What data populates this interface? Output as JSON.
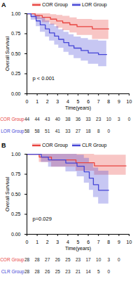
{
  "chart_data": [
    {
      "type": "line",
      "panel_label": "A",
      "x_label": "Time(years)",
      "y_label": "Overall Survival",
      "annotation": "p < 0.001",
      "xlim": [
        0,
        10
      ],
      "xticks": [
        0,
        1,
        2,
        3,
        4,
        5,
        6,
        7,
        8,
        9,
        10
      ],
      "ylim": [
        0,
        1
      ],
      "yticks": [
        {
          "value": 0,
          "label": "0.00"
        },
        {
          "value": 0.25,
          "label": "0.25"
        },
        {
          "value": 0.5,
          "label": "0.50"
        },
        {
          "value": 0.75,
          "label": "0.75"
        },
        {
          "value": 1,
          "label": "1.00"
        }
      ],
      "legend": "top",
      "series": [
        {
          "name": "COR Group",
          "color": "#e8433f",
          "x": [
            0,
            0.8,
            1.5,
            2.3,
            2.9,
            3.5,
            4.2,
            4.9,
            6.4,
            8.0
          ],
          "values": [
            1,
            0.977,
            0.955,
            0.932,
            0.909,
            0.886,
            0.862,
            0.838,
            0.81,
            0.81
          ],
          "lower": [
            1,
            0.93,
            0.89,
            0.86,
            0.82,
            0.79,
            0.76,
            0.73,
            0.68,
            0.68
          ],
          "upper": [
            1,
            1,
            1,
            0.99,
            0.98,
            0.97,
            0.95,
            0.93,
            0.92,
            0.92
          ]
        },
        {
          "name": "LOR Group",
          "color": "#4545d6",
          "x": [
            0,
            0.4,
            0.9,
            1.3,
            1.8,
            2.2,
            2.7,
            3.1,
            3.6,
            4.1,
            4.6,
            5.3,
            6.0,
            7.0,
            7.8
          ],
          "values": [
            1,
            0.965,
            0.91,
            0.86,
            0.81,
            0.76,
            0.72,
            0.68,
            0.64,
            0.6,
            0.57,
            0.54,
            0.51,
            0.49,
            0.49
          ],
          "lower": [
            1,
            0.92,
            0.84,
            0.77,
            0.71,
            0.66,
            0.61,
            0.57,
            0.52,
            0.48,
            0.44,
            0.41,
            0.37,
            0.34,
            0.34
          ],
          "upper": [
            1,
            1,
            0.98,
            0.95,
            0.91,
            0.87,
            0.84,
            0.8,
            0.77,
            0.74,
            0.71,
            0.69,
            0.67,
            0.66,
            0.66
          ]
        }
      ],
      "risk_table": {
        "times": [
          0,
          1,
          2,
          3,
          4,
          5,
          6,
          7,
          8,
          9,
          10
        ],
        "rows": [
          {
            "name": "COR Group",
            "color": "#e8433f",
            "counts": [
              44,
              44,
              43,
              40,
              38,
              36,
              33,
              23,
              10,
              3,
              0
            ]
          },
          {
            "name": "LOR Group",
            "color": "#4545d6",
            "counts": [
              58,
              58,
              51,
              41,
              33,
              27,
              18,
              8,
              0,
              null,
              null
            ]
          }
        ]
      }
    },
    {
      "type": "line",
      "panel_label": "B",
      "x_label": "Time(years)",
      "y_label": "Overall Survival",
      "annotation": "p=0.029",
      "xlim": [
        0,
        10
      ],
      "xticks": [
        0,
        1,
        2,
        3,
        4,
        5,
        6,
        7,
        8,
        9,
        10
      ],
      "ylim": [
        0,
        1
      ],
      "yticks": [
        {
          "value": 0,
          "label": "0.00"
        },
        {
          "value": 0.25,
          "label": "0.25"
        },
        {
          "value": 0.5,
          "label": "0.50"
        },
        {
          "value": 0.75,
          "label": "0.75"
        },
        {
          "value": 1,
          "label": "1.00"
        }
      ],
      "legend": "top",
      "series": [
        {
          "name": "COR Group",
          "color": "#e8433f",
          "x": [
            0,
            1.2,
            2.4,
            4.8,
            6.6,
            9.7
          ],
          "values": [
            1,
            0.964,
            0.929,
            0.893,
            0.855,
            0.855
          ],
          "lower": [
            1,
            0.9,
            0.84,
            0.79,
            0.74,
            0.74
          ],
          "upper": [
            1,
            1,
            1,
            1,
            0.99,
            0.99
          ]
        },
        {
          "name": "CLR Group",
          "color": "#4545d6",
          "x": [
            0,
            1.4,
            2.1,
            3.8,
            4.9,
            5.6,
            6.1,
            6.5,
            7.0,
            8.0
          ],
          "values": [
            1,
            0.964,
            0.929,
            0.89,
            0.85,
            0.78,
            0.7,
            0.62,
            0.55,
            0.55
          ],
          "lower": [
            1,
            0.9,
            0.84,
            0.78,
            0.72,
            0.64,
            0.55,
            0.46,
            0.38,
            0.38
          ],
          "upper": [
            1,
            1,
            1,
            1,
            0.99,
            0.95,
            0.89,
            0.83,
            0.79,
            0.79
          ]
        }
      ],
      "risk_table": {
        "times": [
          0,
          1,
          2,
          3,
          4,
          5,
          6,
          7,
          8,
          9,
          10
        ],
        "rows": [
          {
            "name": "COR Group",
            "color": "#e8433f",
            "counts": [
              28,
              28,
              27,
              26,
              25,
              23,
              17,
              10,
              3,
              0,
              null
            ]
          },
          {
            "name": "CLR Group",
            "color": "#4545d6",
            "counts": [
              28,
              28,
              26,
              25,
              23,
              21,
              14,
              5,
              0,
              null,
              null
            ]
          }
        ]
      }
    }
  ]
}
